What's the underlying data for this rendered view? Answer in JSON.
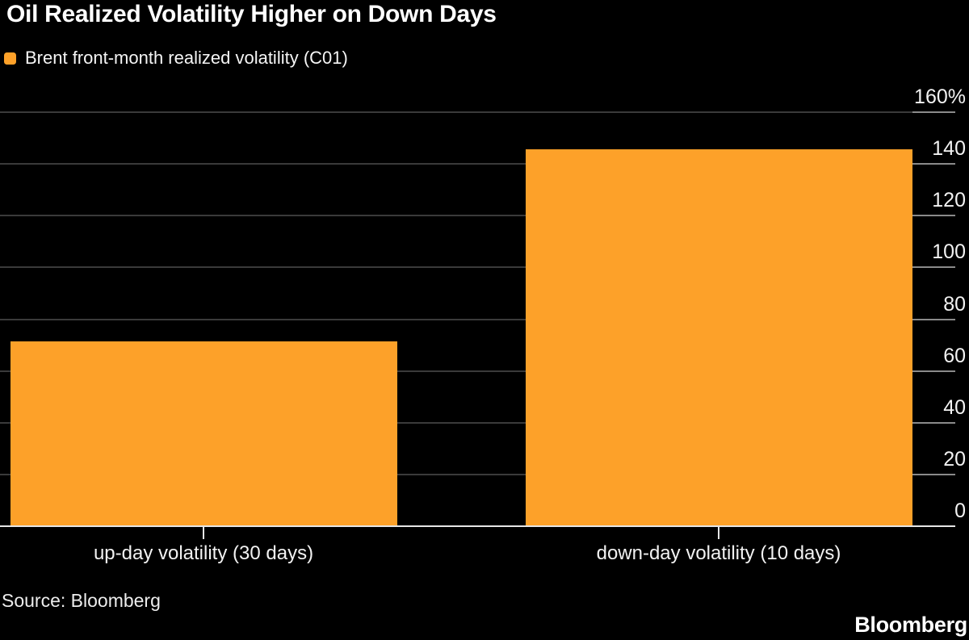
{
  "header": {
    "title": "Oil Realized Volatility Higher on Down Days"
  },
  "legend": {
    "label": "Brent front-month realized volatility (C01)"
  },
  "chart_data": {
    "type": "bar",
    "title": "Oil Realized Volatility Higher on Down Days",
    "series_name": "Brent front-month realized volatility (C01)",
    "categories": [
      "up-day volatility (30 days)",
      "down-day volatility (10 days)"
    ],
    "values": [
      71.5,
      145.7
    ],
    "unit": "%",
    "xlabel": "",
    "ylabel": "",
    "ylim": [
      0,
      160
    ],
    "yticks": [
      0,
      20,
      40,
      60,
      80,
      100,
      120,
      140,
      160
    ],
    "ytick_labels": [
      "0",
      "20",
      "40",
      "60",
      "80",
      "100",
      "120",
      "140",
      "160%"
    ],
    "grid": "horizontal",
    "axis_side": "right",
    "legend_position": "top-left"
  },
  "footer": {
    "source": "Source: Bloomberg",
    "logo": "Bloomberg"
  },
  "colors": {
    "background": "#000000",
    "bar": "#FDA129",
    "gridline": "#3A3A3A",
    "tick_extension": "#8A8A8A",
    "baseline": "#E6E6E6",
    "axis_text": "#F2F2F2",
    "title_text": "#FFFFFF"
  }
}
